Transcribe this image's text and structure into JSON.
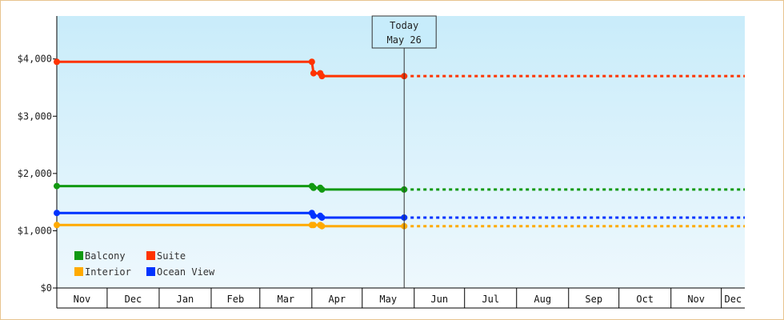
{
  "chart_data": {
    "type": "line",
    "x_axis": {
      "months": [
        "Nov",
        "Dec",
        "Jan",
        "Feb",
        "Mar",
        "Apr",
        "May",
        "Jun",
        "Jul",
        "Aug",
        "Sep",
        "Oct",
        "Nov",
        "Dec"
      ],
      "start": "2023-11-01",
      "end": "2024-12-15"
    },
    "y_axis": {
      "ticks": [
        {
          "value": 0,
          "label": "$0"
        },
        {
          "value": 1000,
          "label": "$1,000"
        },
        {
          "value": 2000,
          "label": "$2,000"
        },
        {
          "value": 3000,
          "label": "$3,000"
        },
        {
          "value": 4000,
          "label": "$4,000"
        }
      ],
      "ylim": [
        0,
        4750
      ]
    },
    "today": {
      "date": "2024-05-26",
      "label_line1": "Today",
      "label_line2": "May 26"
    },
    "grid": false,
    "legend_position": "bottom-left",
    "series": [
      {
        "name": "Suite",
        "color": "#ff3300",
        "points": [
          [
            "2023-11-01",
            3950
          ],
          [
            "2024-04-01",
            3950
          ],
          [
            "2024-04-02",
            3750
          ],
          [
            "2024-04-06",
            3750
          ],
          [
            "2024-04-07",
            3700
          ],
          [
            "2024-05-26",
            3700
          ]
        ],
        "projection": {
          "to": "2024-12-15",
          "value": 3700
        }
      },
      {
        "name": "Balcony",
        "color": "#119911",
        "points": [
          [
            "2023-11-01",
            1780
          ],
          [
            "2024-04-01",
            1780
          ],
          [
            "2024-04-02",
            1750
          ],
          [
            "2024-04-06",
            1750
          ],
          [
            "2024-04-07",
            1720
          ],
          [
            "2024-05-26",
            1720
          ]
        ],
        "projection": {
          "to": "2024-12-15",
          "value": 1720
        }
      },
      {
        "name": "Ocean View",
        "color": "#0033ff",
        "points": [
          [
            "2023-11-01",
            1310
          ],
          [
            "2024-04-01",
            1310
          ],
          [
            "2024-04-02",
            1260
          ],
          [
            "2024-04-06",
            1260
          ],
          [
            "2024-04-07",
            1230
          ],
          [
            "2024-05-26",
            1230
          ]
        ],
        "projection": {
          "to": "2024-12-15",
          "value": 1230
        }
      },
      {
        "name": "Interior",
        "color": "#ffaa00",
        "points": [
          [
            "2023-11-01",
            1100
          ],
          [
            "2024-04-01",
            1100
          ],
          [
            "2024-04-02",
            1100
          ],
          [
            "2024-04-06",
            1100
          ],
          [
            "2024-04-07",
            1080
          ],
          [
            "2024-05-26",
            1080
          ]
        ],
        "projection": {
          "to": "2024-12-15",
          "value": 1080
        }
      }
    ],
    "legend": [
      {
        "name": "Balcony",
        "color": "#119911"
      },
      {
        "name": "Suite",
        "color": "#ff3300"
      },
      {
        "name": "Interior",
        "color": "#ffaa00"
      },
      {
        "name": "Ocean View",
        "color": "#0033ff"
      }
    ]
  }
}
